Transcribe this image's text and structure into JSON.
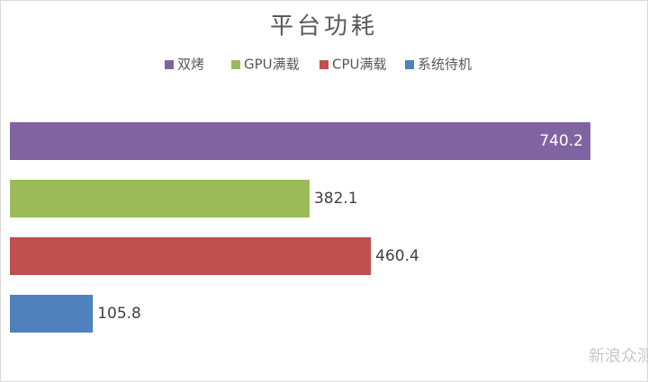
{
  "chart_data": {
    "type": "bar",
    "orientation": "horizontal",
    "title": "平台功耗",
    "series": [
      {
        "name": "双烤",
        "color": "#8064a2",
        "values": [
          740.2
        ]
      },
      {
        "name": "GPU满载",
        "color": "#9bbb59",
        "values": [
          382.1
        ]
      },
      {
        "name": "CPU满载",
        "color": "#c0504d",
        "values": [
          460.4
        ]
      },
      {
        "name": "系统待机",
        "color": "#4f81bd",
        "values": [
          105.8
        ]
      }
    ],
    "legend": "top",
    "grid": false
  },
  "watermark": "新浪众测"
}
